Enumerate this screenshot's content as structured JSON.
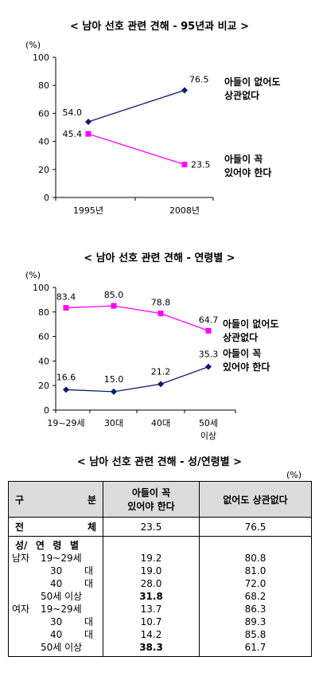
{
  "chart_data": [
    {
      "type": "line",
      "title": "< 남아 선호 관련 견해 - 95년과 비교 >",
      "unit": "(%)",
      "categories": [
        "1995년",
        "2008년"
      ],
      "yticks": [
        0,
        20,
        40,
        60,
        80,
        100
      ],
      "ylim": [
        0,
        100
      ],
      "series": [
        {
          "name": "아들이 없어도 상관없다",
          "values": [
            54.0,
            76.5
          ],
          "labels": [
            "54.0",
            "76.5"
          ],
          "color": "#0a1a6e",
          "marker": "diamond"
        },
        {
          "name": "아들이 꼭 있어야 한다",
          "values": [
            45.4,
            23.5
          ],
          "labels": [
            "45.4",
            "23.5"
          ],
          "color": "#ff00ff",
          "marker": "square"
        }
      ],
      "legend": [
        [
          "아들이 없어도",
          "상관없다"
        ],
        [
          "아들이 꼭",
          "있어야 한다"
        ]
      ]
    },
    {
      "type": "line",
      "title": "< 남아 선호 관련 견해 - 연령별 >",
      "unit": "(%)",
      "categories": [
        "19~29세",
        "30대",
        "40대",
        "50세 이상"
      ],
      "yticks": [
        0,
        20,
        40,
        60,
        80,
        100
      ],
      "ylim": [
        0,
        100
      ],
      "series": [
        {
          "name": "아들이 없어도 상관없다",
          "values": [
            83.4,
            85.0,
            78.8,
            64.7
          ],
          "labels": [
            "83.4",
            "85.0",
            "78.8",
            "64.7"
          ],
          "color": "#ff00ff",
          "marker": "square"
        },
        {
          "name": "아들이 꼭 있어야 한다",
          "values": [
            16.6,
            15.0,
            21.2,
            35.3
          ],
          "labels": [
            "16.6",
            "15.0",
            "21.2",
            "35.3"
          ],
          "color": "#0a1a6e",
          "marker": "diamond"
        }
      ],
      "legend": [
        [
          "아들이 없어도",
          "상관없다"
        ],
        [
          "아들이 꼭",
          "있어야 한다"
        ]
      ]
    },
    {
      "type": "table",
      "title": "< 남아 선호 관련 견해 - 성/연령별 >",
      "unit": "(%)",
      "header": {
        "category": [
          "구",
          "분"
        ],
        "col1": [
          "아들이 꼭",
          "있어야 한다"
        ],
        "col2": "없어도 상관없다"
      },
      "total": {
        "label": [
          "전",
          "체"
        ],
        "col1": "23.5",
        "col2": "76.5"
      },
      "section_label": [
        "성/",
        "연",
        "령",
        "별"
      ],
      "rows": [
        {
          "group": "남자",
          "age": [
            "19~29세",
            ""
          ],
          "col1": "19.2",
          "col2": "80.8",
          "bold": false
        },
        {
          "group": "",
          "age": [
            "30",
            "대"
          ],
          "col1": "19.0",
          "col2": "81.0",
          "bold": false
        },
        {
          "group": "",
          "age": [
            "40",
            "대"
          ],
          "col1": "28.0",
          "col2": "72.0",
          "bold": false
        },
        {
          "group": "",
          "age": [
            "50세 이상",
            ""
          ],
          "col1": "31.8",
          "col2": "68.2",
          "bold": true
        },
        {
          "group": "여자",
          "age": [
            "19~29세",
            ""
          ],
          "col1": "13.7",
          "col2": "86.3",
          "bold": false
        },
        {
          "group": "",
          "age": [
            "30",
            "대"
          ],
          "col1": "10.7",
          "col2": "89.3",
          "bold": false
        },
        {
          "group": "",
          "age": [
            "40",
            "대"
          ],
          "col1": "14.2",
          "col2": "85.8",
          "bold": false
        },
        {
          "group": "",
          "age": [
            "50세 이상",
            ""
          ],
          "col1": "38.3",
          "col2": "61.7",
          "bold": true
        }
      ]
    }
  ]
}
